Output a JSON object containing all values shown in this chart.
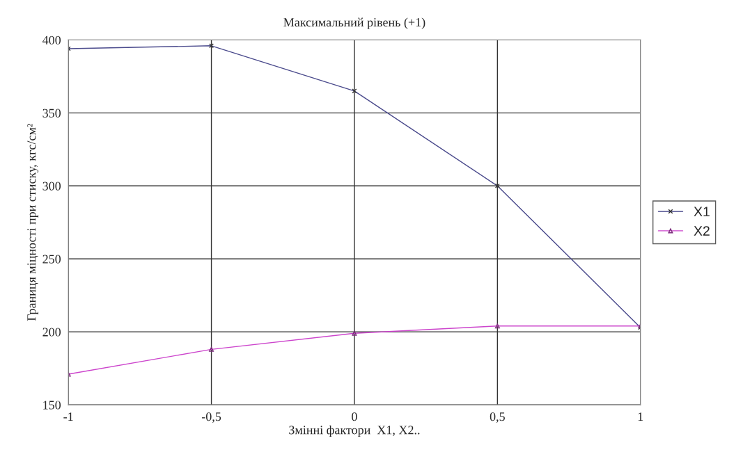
{
  "chart_data": {
    "type": "line",
    "title": "Максимальний рівень (+1)",
    "xlabel": "Змінні фактори  X1, X2..",
    "ylabel": "Границя міцності при стиску, кгс/см²",
    "x": [
      -1,
      -0.5,
      0,
      0.5,
      1
    ],
    "series": [
      {
        "name": "X1",
        "color": "#4a4a8c",
        "marker": "cross",
        "values": [
          394,
          396,
          365,
          300,
          203
        ]
      },
      {
        "name": "X2",
        "color": "#cc44cc",
        "marker": "triangle",
        "values": [
          171,
          188,
          199,
          204,
          204
        ]
      }
    ],
    "xlim": [
      -1,
      1
    ],
    "xticks": [
      {
        "value": -1,
        "label": "-1"
      },
      {
        "value": -0.5,
        "label": "-0,5"
      },
      0,
      {
        "value": 0.5,
        "label": "0,5"
      },
      1
    ],
    "ylim": [
      150,
      400
    ],
    "yticks": [
      150,
      200,
      250,
      300,
      350,
      400
    ],
    "grid": true,
    "legend": "right"
  }
}
